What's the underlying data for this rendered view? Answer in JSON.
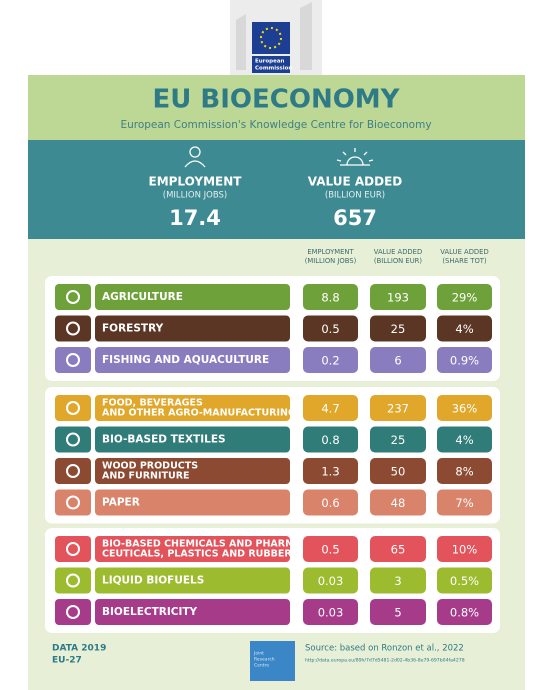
{
  "logo": {
    "lines": [
      "European",
      "Commission"
    ]
  },
  "header": {
    "title": "EU BIOECONOMY",
    "subtitle": "European Commission's Knowledge Centre for Bioeconomy"
  },
  "summary": [
    {
      "label": "EMPLOYMENT",
      "unit": "(MILLION JOBS)",
      "value": "17.4"
    },
    {
      "label": "VALUE ADDED",
      "unit": "(BILLION EUR)",
      "value": "657"
    }
  ],
  "columns": [
    [
      "EMPLOYMENT",
      "(MILLION JOBS)"
    ],
    [
      "VALUE ADDED",
      "(BILLION EUR)"
    ],
    [
      "VALUE ADDED",
      "(SHARE TOT)"
    ]
  ],
  "groups": [
    {
      "rows": [
        {
          "label": [
            "AGRICULTURE"
          ],
          "color": "#6fa13a",
          "values": [
            "8.8",
            "193",
            "29%"
          ]
        },
        {
          "label": [
            "FORESTRY"
          ],
          "color": "#5b3624",
          "values": [
            "0.5",
            "25",
            "4%"
          ]
        },
        {
          "label": [
            "FISHING AND AQUACULTURE"
          ],
          "color": "#8a7dbf",
          "values": [
            "0.2",
            "6",
            "0.9%"
          ]
        }
      ]
    },
    {
      "rows": [
        {
          "label": [
            "FOOD, BEVERAGES",
            "AND OTHER AGRO-MANUFACTURING"
          ],
          "color": "#e0a72b",
          "values": [
            "4.7",
            "237",
            "36%"
          ]
        },
        {
          "label": [
            "BIO-BASED TEXTILES"
          ],
          "color": "#2f7c79",
          "values": [
            "0.8",
            "25",
            "4%"
          ]
        },
        {
          "label": [
            "WOOD PRODUCTS",
            "AND FURNITURE"
          ],
          "color": "#8b4a31",
          "values": [
            "1.3",
            "50",
            "8%"
          ]
        },
        {
          "label": [
            "PAPER"
          ],
          "color": "#d9836b",
          "values": [
            "0.6",
            "48",
            "7%"
          ]
        }
      ]
    },
    {
      "rows": [
        {
          "label": [
            "BIO-BASED CHEMICALS AND PHARMA-",
            "CEUTICALS, PLASTICS AND RUBBER"
          ],
          "color": "#e2535b",
          "values": [
            "0.5",
            "65",
            "10%"
          ]
        },
        {
          "label": [
            "LIQUID BIOFUELS"
          ],
          "color": "#9dbb2f",
          "values": [
            "0.03",
            "3",
            "0.5%"
          ]
        },
        {
          "label": [
            "BIOELECTRICITY"
          ],
          "color": "#a63b8a",
          "values": [
            "0.03",
            "5",
            "0.8%"
          ]
        }
      ]
    }
  ],
  "footer": {
    "data_lines": [
      "DATA 2019",
      "EU-27"
    ],
    "jrc_lines": [
      "Joint",
      "Research",
      "Centre"
    ],
    "source": "Source: based on Ronzon et al., 2022",
    "url": "http://data.europa.eu/89h/7d7d5481-2d02-4b36-8e79-697b04fa4278"
  }
}
